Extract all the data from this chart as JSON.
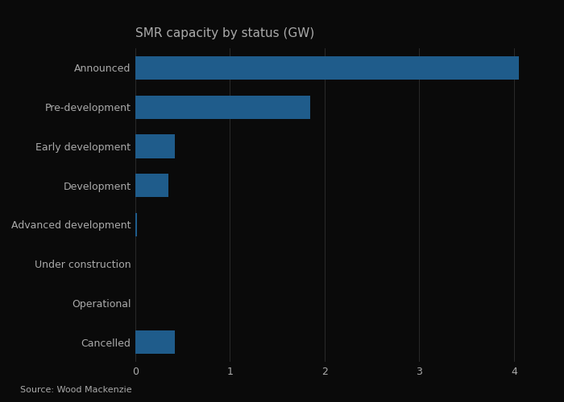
{
  "title": "SMR capacity by status (GW)",
  "categories": [
    "Announced",
    "Pre-development",
    "Early development",
    "Development",
    "Advanced development",
    "Under construction",
    "Operational",
    "Cancelled"
  ],
  "values": [
    4.05,
    1.85,
    0.42,
    0.35,
    0.02,
    0.0,
    0.0,
    0.42
  ],
  "bar_color": "#1f5c8b",
  "background_color": "#0a0a0a",
  "text_color": "#aaaaaa",
  "title_color": "#aaaaaa",
  "source_text": "Source: Wood Mackenzie",
  "xlim": [
    0,
    4.35
  ],
  "xticks": [
    0,
    1,
    2,
    3,
    4
  ],
  "grid_color": "#2a2a2a",
  "bar_height": 0.6,
  "title_fontsize": 11,
  "label_fontsize": 9,
  "tick_fontsize": 9,
  "source_fontsize": 8
}
